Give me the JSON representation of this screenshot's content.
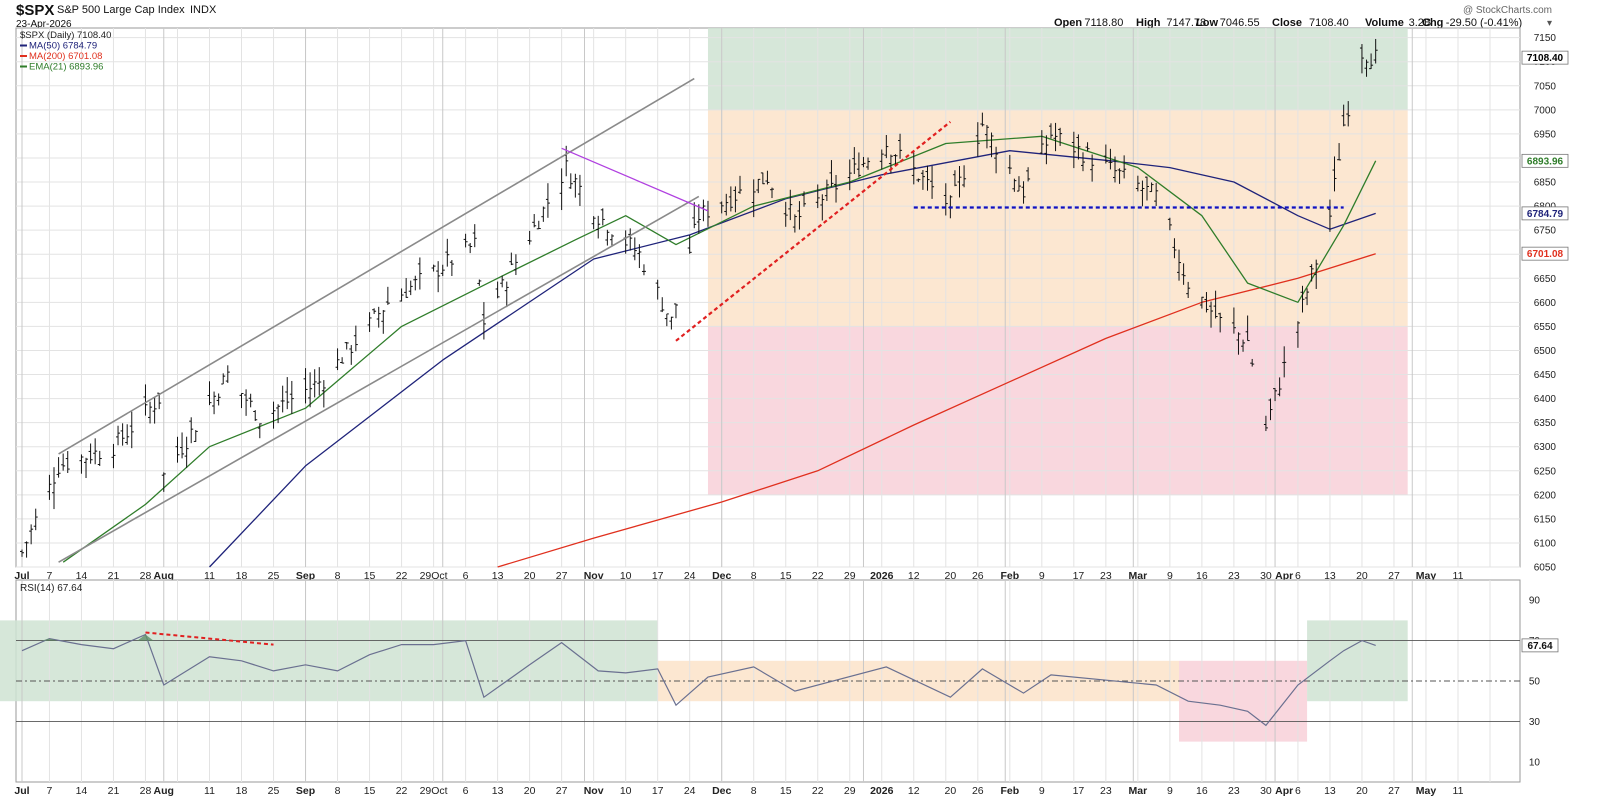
{
  "header": {
    "symbol": "$SPX",
    "name": "S&P 500 Large Cap Index",
    "exchange": "INDX",
    "date": "23-Apr-2026",
    "watermark": "@ StockCharts.com",
    "ohlc_labels": [
      "Open",
      "High",
      "Low",
      "Close",
      "Volume",
      "Chg"
    ],
    "ohlc_values": [
      "7118.80",
      "7147.78",
      "7046.55",
      "7108.40",
      "3.2B",
      "-29.50 (-0.41%)"
    ]
  },
  "legend": [
    {
      "text": "$SPX (Daily) 7108.40",
      "color": "#222222"
    },
    {
      "text": "MA(50) 6784.79",
      "color": "#1f237a"
    },
    {
      "text": "MA(200) 6701.08",
      "color": "#e0301e"
    },
    {
      "text": "EMA(21) 6893.96",
      "color": "#2f7d2a"
    }
  ],
  "price_axis": {
    "ticks": [
      "7150",
      "7100",
      "7050",
      "7000",
      "6950",
      "6900",
      "6850",
      "6800",
      "6750",
      "6700",
      "6650",
      "6600",
      "6550",
      "6500",
      "6450",
      "6400",
      "6350",
      "6300",
      "6250",
      "6200",
      "6150",
      "6100",
      "6050"
    ],
    "tags": [
      {
        "text": "7108.40",
        "value": 7108.4,
        "bg": "#ffffff",
        "fg": "#000000"
      },
      {
        "text": "6893.96",
        "value": 6893.96,
        "bg": "#ffffff",
        "fg": "#2f7d2a"
      },
      {
        "text": "6784.79",
        "value": 6784.79,
        "bg": "#ffffff",
        "fg": "#1f237a"
      },
      {
        "text": "6701.08",
        "value": 6701.08,
        "bg": "#ffffff",
        "fg": "#e0301e"
      }
    ]
  },
  "date_axis": [
    "Jul",
    "7",
    "14",
    "21",
    "28",
    "Aug",
    "11",
    "18",
    "25",
    "Sep",
    "8",
    "15",
    "22",
    "29Oct",
    "6",
    "13",
    "20",
    "27",
    "Nov",
    "10",
    "17",
    "24",
    "Dec",
    "8",
    "15",
    "22",
    "29",
    "2026",
    "12",
    "20",
    "26",
    "Feb",
    "9",
    "17",
    "23",
    "Mar",
    "9",
    "16",
    "23",
    "30",
    "Apr",
    "6",
    "13",
    "20",
    "27",
    "May",
    "11"
  ],
  "rsi_axis": {
    "label": "RSI(14) 67.64",
    "ticks": [
      "90",
      "70",
      "50",
      "30",
      "10"
    ],
    "tag": "67.64"
  },
  "colors": {
    "green_zone": "#cfe3d2",
    "orange_zone": "#fbe3c9",
    "red_zone": "#f8d0d8",
    "price_bar": "#111111",
    "channel": "#8a8a8a",
    "purple_line": "#b040e0",
    "red_dotted": "#e02020",
    "blue_dotted": "#1010c0",
    "rsi_line": "#6a7090",
    "grid": "#e3e3e3"
  },
  "chart_data": [
    {
      "type": "line",
      "title": "$SPX (Daily) 7108.40",
      "x_range": [
        "2025-07-01",
        "2026-05-18"
      ],
      "y_range": [
        6050,
        7170
      ],
      "zones": [
        {
          "from": 7000,
          "to": 7170,
          "start": "2025-11-28",
          "end": "2026-04-30",
          "color": "green"
        },
        {
          "from": 6550,
          "to": 7000,
          "start": "2025-11-28",
          "end": "2026-04-30",
          "color": "orange"
        },
        {
          "from": 6200,
          "to": 6550,
          "start": "2025-11-28",
          "end": "2026-04-30",
          "color": "red"
        }
      ],
      "series": [
        {
          "name": "MA(50)",
          "last": 6784.79,
          "points": [
            [
              "2025-08-11",
              6050
            ],
            [
              "2025-09-01",
              6260
            ],
            [
              "2025-10-01",
              6480
            ],
            [
              "2025-11-03",
              6690
            ],
            [
              "2025-11-24",
              6740
            ],
            [
              "2025-12-15",
              6815
            ],
            [
              "2026-01-05",
              6865
            ],
            [
              "2026-02-02",
              6915
            ],
            [
              "2026-02-23",
              6895
            ],
            [
              "2026-03-09",
              6880
            ],
            [
              "2026-03-23",
              6850
            ],
            [
              "2026-04-06",
              6780
            ],
            [
              "2026-04-13",
              6752
            ],
            [
              "2026-04-23",
              6784.79
            ]
          ]
        },
        {
          "name": "MA(200)",
          "last": 6701.08,
          "points": [
            [
              "2025-10-13",
              6050
            ],
            [
              "2025-11-03",
              6110
            ],
            [
              "2025-12-01",
              6185
            ],
            [
              "2025-12-22",
              6250
            ],
            [
              "2026-01-12",
              6345
            ],
            [
              "2026-02-02",
              6435
            ],
            [
              "2026-02-23",
              6525
            ],
            [
              "2026-03-16",
              6600
            ],
            [
              "2026-04-06",
              6650
            ],
            [
              "2026-04-23",
              6701.08
            ]
          ]
        },
        {
          "name": "EMA(21)",
          "last": 6893.96,
          "points": [
            [
              "2025-07-10",
              6060
            ],
            [
              "2025-07-28",
              6180
            ],
            [
              "2025-08-11",
              6300
            ],
            [
              "2025-09-01",
              6380
            ],
            [
              "2025-09-22",
              6550
            ],
            [
              "2025-10-13",
              6650
            ],
            [
              "2025-10-30",
              6730
            ],
            [
              "2025-11-10",
              6780
            ],
            [
              "2025-11-21",
              6720
            ],
            [
              "2025-12-08",
              6800
            ],
            [
              "2025-12-29",
              6850
            ],
            [
              "2026-01-19",
              6930
            ],
            [
              "2026-02-09",
              6945
            ],
            [
              "2026-03-02",
              6880
            ],
            [
              "2026-03-16",
              6780
            ],
            [
              "2026-03-26",
              6640
            ],
            [
              "2026-04-06",
              6600
            ],
            [
              "2026-04-16",
              6760
            ],
            [
              "2026-04-23",
              6893.96
            ]
          ]
        }
      ],
      "ohlc_close_path": [
        [
          "2025-07-01",
          6080
        ],
        [
          "2025-07-09",
          6260
        ],
        [
          "2025-07-21",
          6300
        ],
        [
          "2025-07-31",
          6400
        ],
        [
          "2025-08-01",
          6240
        ],
        [
          "2025-08-15",
          6450
        ],
        [
          "2025-08-22",
          6360
        ],
        [
          "2025-09-05",
          6440
        ],
        [
          "2025-09-19",
          6600
        ],
        [
          "2025-10-08",
          6720
        ],
        [
          "2025-10-10",
          6560
        ],
        [
          "2025-10-28",
          6880
        ],
        [
          "2025-11-04",
          6780
        ],
        [
          "2025-11-13",
          6700
        ],
        [
          "2025-11-20",
          6560
        ],
        [
          "2025-11-26",
          6780
        ],
        [
          "2025-12-11",
          6860
        ],
        [
          "2025-12-17",
          6770
        ],
        [
          "2026-01-06",
          6930
        ],
        [
          "2026-01-20",
          6800
        ],
        [
          "2026-01-27",
          6970
        ],
        [
          "2026-02-05",
          6830
        ],
        [
          "2026-02-11",
          6950
        ],
        [
          "2026-03-06",
          6820
        ],
        [
          "2026-03-13",
          6640
        ],
        [
          "2026-03-20",
          6560
        ],
        [
          "2026-03-26",
          6520
        ],
        [
          "2026-03-30",
          6340
        ],
        [
          "2026-04-06",
          6560
        ],
        [
          "2026-04-13",
          6780
        ],
        [
          "2026-04-16",
          6970
        ],
        [
          "2026-04-20",
          7120
        ],
        [
          "2026-04-23",
          7108.4
        ]
      ],
      "annotations": [
        {
          "type": "channel-upper",
          "from": [
            "2025-07-09",
            6285
          ],
          "to": [
            "2025-11-25",
            7065
          ]
        },
        {
          "type": "channel-lower",
          "from": [
            "2025-07-09",
            6060
          ],
          "to": [
            "2025-11-26",
            6820
          ]
        },
        {
          "type": "trendline-purple",
          "from": [
            "2025-10-27",
            6920
          ],
          "to": [
            "2025-11-28",
            6790
          ]
        },
        {
          "type": "trendline-red-dotted",
          "from": [
            "2025-11-21",
            6520
          ],
          "to": [
            "2026-01-20",
            6975
          ]
        },
        {
          "type": "support-blue-dotted",
          "value": 6797,
          "start": "2026-01-12",
          "end": "2026-04-16"
        }
      ]
    },
    {
      "type": "line",
      "title": "RSI(14) 67.64",
      "y_range": [
        0,
        100
      ],
      "guides": [
        70,
        50,
        30
      ],
      "zones": [
        {
          "from": 40,
          "to": 80,
          "start": "2025-07-01",
          "end": "2025-11-17",
          "color": "green"
        },
        {
          "from": 40,
          "to": 60,
          "start": "2025-11-17",
          "end": "2026-03-11",
          "color": "orange"
        },
        {
          "from": 20,
          "to": 60,
          "start": "2026-03-11",
          "end": "2026-04-08",
          "color": "red"
        },
        {
          "from": 40,
          "to": 80,
          "start": "2026-04-08",
          "end": "2026-04-30",
          "color": "green"
        }
      ],
      "series": [
        {
          "name": "RSI(14)",
          "last": 67.64,
          "points": [
            [
              "2025-07-01",
              65
            ],
            [
              "2025-07-07",
              71
            ],
            [
              "2025-07-14",
              68
            ],
            [
              "2025-07-21",
              66
            ],
            [
              "2025-07-28",
              73
            ],
            [
              "2025-08-01",
              48
            ],
            [
              "2025-08-11",
              62
            ],
            [
              "2025-08-18",
              60
            ],
            [
              "2025-08-25",
              55
            ],
            [
              "2025-09-01",
              58
            ],
            [
              "2025-09-08",
              55
            ],
            [
              "2025-09-15",
              63
            ],
            [
              "2025-09-22",
              68
            ],
            [
              "2025-09-29",
              68
            ],
            [
              "2025-10-06",
              70
            ],
            [
              "2025-10-10",
              42
            ],
            [
              "2025-10-20",
              58
            ],
            [
              "2025-10-27",
              69
            ],
            [
              "2025-11-04",
              55
            ],
            [
              "2025-11-10",
              54
            ],
            [
              "2025-11-17",
              56
            ],
            [
              "2025-11-21",
              38
            ],
            [
              "2025-11-28",
              52
            ],
            [
              "2025-12-08",
              57
            ],
            [
              "2025-12-17",
              45
            ],
            [
              "2026-01-06",
              57
            ],
            [
              "2026-01-20",
              42
            ],
            [
              "2026-01-27",
              56
            ],
            [
              "2026-02-05",
              44
            ],
            [
              "2026-02-11",
              53
            ],
            [
              "2026-03-06",
              48
            ],
            [
              "2026-03-13",
              40
            ],
            [
              "2026-03-20",
              38
            ],
            [
              "2026-03-26",
              35
            ],
            [
              "2026-03-30",
              28
            ],
            [
              "2026-04-06",
              48
            ],
            [
              "2026-04-13",
              60
            ],
            [
              "2026-04-16",
              65
            ],
            [
              "2026-04-20",
              70
            ],
            [
              "2026-04-23",
              67.64
            ]
          ]
        }
      ],
      "annotations": [
        {
          "type": "divergence-red-dotted",
          "from": [
            "2025-07-28",
            74
          ],
          "to": [
            "2025-08-25",
            68
          ]
        }
      ]
    }
  ]
}
